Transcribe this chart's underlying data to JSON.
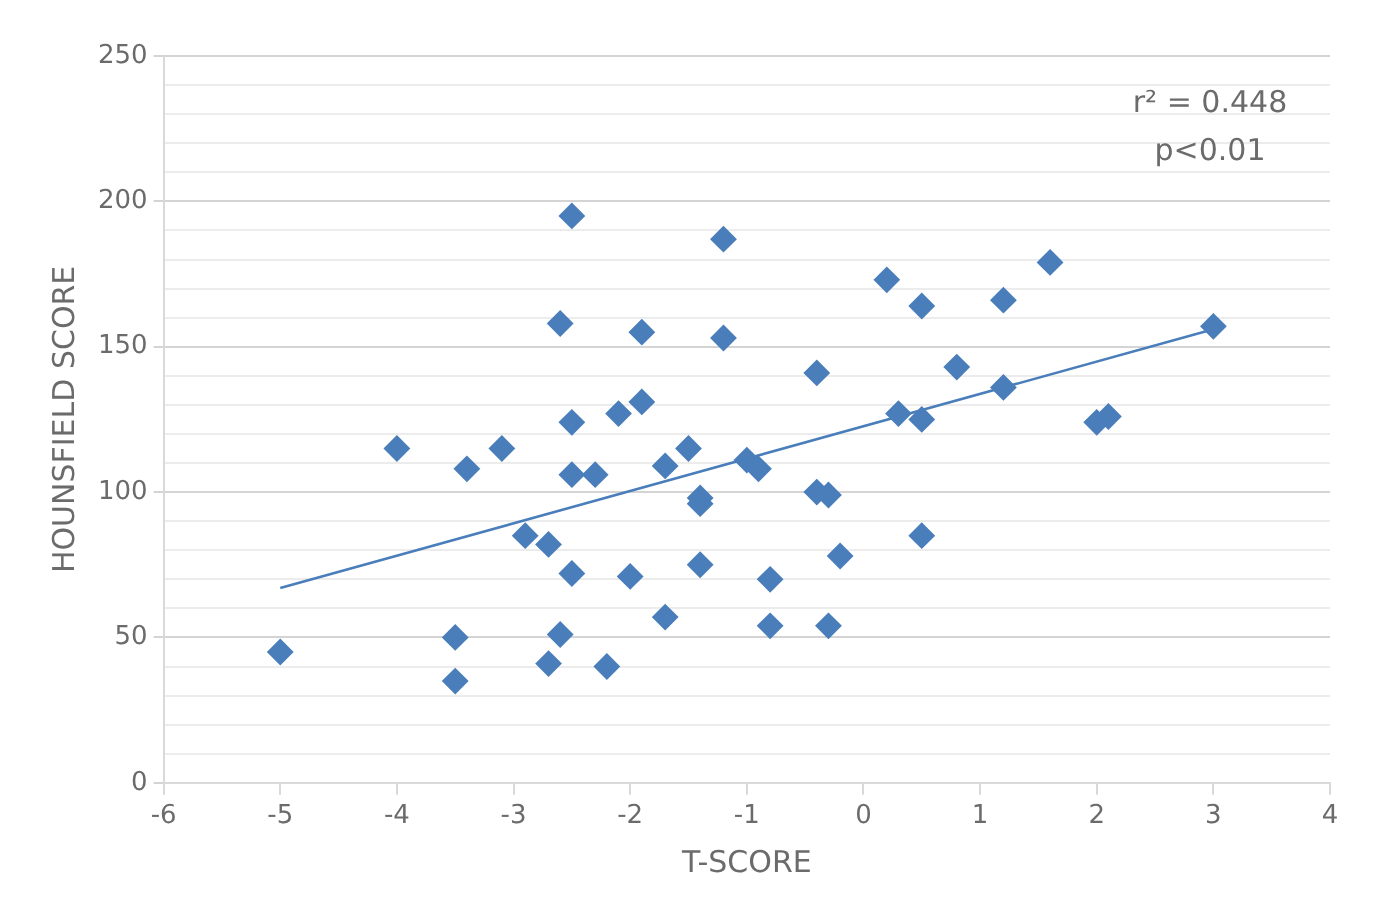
{
  "chart_data": {
    "type": "scatter",
    "xlabel": "T-SCORE",
    "ylabel": "HOUNSFIELD SCORE",
    "annotations": [
      "r² = 0.448",
      "p<0.01"
    ],
    "xlim": [
      -6,
      4
    ],
    "xticks": [
      -6,
      -5,
      -4,
      -3,
      -2,
      -1,
      0,
      1,
      2,
      3,
      4
    ],
    "ylim": [
      0,
      250
    ],
    "yticks": [
      0,
      {
        "value": 10,
        "label": null
      },
      {
        "value": 20,
        "label": null
      },
      {
        "value": 30,
        "label": null
      },
      {
        "value": 40,
        "label": null
      },
      50,
      {
        "value": 60,
        "label": null
      },
      {
        "value": 70,
        "label": null
      },
      {
        "value": 80,
        "label": null
      },
      {
        "value": 90,
        "label": null
      },
      100,
      {
        "value": 110,
        "label": null
      },
      {
        "value": 120,
        "label": null
      },
      {
        "value": 130,
        "label": null
      },
      {
        "value": 140,
        "label": null
      },
      150,
      {
        "value": 160,
        "label": null
      },
      {
        "value": 170,
        "label": null
      },
      {
        "value": 180,
        "label": null
      },
      {
        "value": 190,
        "label": null
      },
      200,
      {
        "value": 210,
        "label": null
      },
      {
        "value": 220,
        "label": null
      },
      {
        "value": 230,
        "label": null
      },
      {
        "value": 240,
        "label": null
      },
      250
    ],
    "grid": "y",
    "legend": false,
    "marker": "diamond",
    "series": [
      {
        "color": "#4a7ebb",
        "x": [
          -5,
          -4,
          -3.5,
          -3.5,
          -3.4,
          -3.1,
          -2.9,
          -2.7,
          -2.7,
          -2.6,
          -2.6,
          -2.5,
          -2.5,
          -2.5,
          -2.5,
          -2.3,
          -2.2,
          -2.1,
          -2,
          -1.9,
          -1.9,
          -1.7,
          -1.7,
          -1.5,
          -1.4,
          -1.4,
          -1.4,
          -1.2,
          -1.2,
          -1,
          -0.9,
          -0.8,
          -0.8,
          -0.4,
          -0.4,
          -0.3,
          -0.3,
          -0.2,
          0.2,
          0.3,
          0.5,
          0.5,
          0.5,
          0.8,
          1.2,
          1.2,
          1.6,
          2,
          2.1,
          3
        ],
        "values": [
          45,
          115,
          50,
          35,
          108,
          115,
          85,
          82,
          41,
          158,
          51,
          195,
          124,
          106,
          72,
          106,
          40,
          127,
          71,
          131,
          155,
          109,
          57,
          115,
          98,
          96,
          75,
          187,
          153,
          111,
          108,
          70,
          54,
          141,
          100,
          99,
          54,
          78,
          173,
          127,
          164,
          125,
          85,
          143,
          166,
          136,
          179,
          124,
          126,
          157
        ]
      },
      {
        "type": "line",
        "color": "#4a7ebb",
        "marker": "none",
        "x": [
          -5,
          3
        ],
        "values": [
          67,
          156
        ]
      }
    ]
  }
}
